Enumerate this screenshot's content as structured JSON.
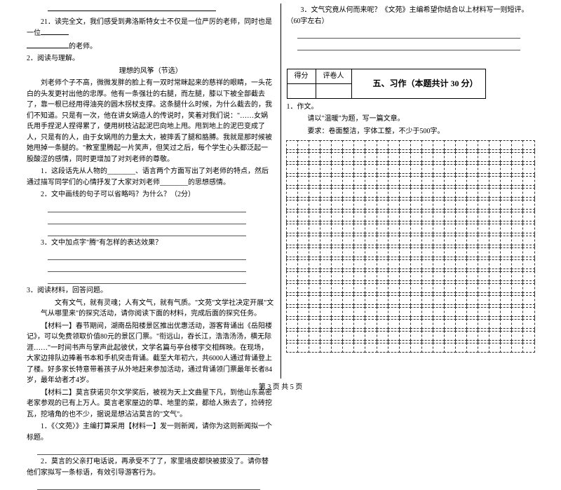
{
  "left": {
    "blank_intro": "",
    "q21": "21．读完全文，我们感受到弗洛斯特女士不仅是一位严厉的老师，同时也是一位",
    "q21_tail": "的老师。",
    "item2": "2．阅读与理解。",
    "passage_title": "理想的风筝（节选）",
    "passage": "刘老师个子不高，微微发胖的脸上有一双时常眯起来的慈祥的眼睛，一头花白的头发更衬出他的忠厚。他有一条强壮的右腿，而左腿，膝以下被全部截去了，靠一根已经用得油亮的圆木拐杖支撑。这条腿什么时候，为什么截去的，我们不知道。只是有一次，他在讲女娲造人的传说时，笑着对我们说：\"……女娲氏用手捏泥人捏得累了，便用树枝沾起泥巴向地上甩。甩到地上的泥巴变成了人，只是有的人，由于女娲甩的力量太大，被摔丢了腿和胳膊。我就是那时候被她甩掉一条腿的。\"教室里腾起一片笑声，但笑过之后，每个学生心头都泛起一股酸涩的感情，同时更增加了对刘老师的尊敬。",
    "q1": "1．这段话先从人物的________、语言两个方面写出了刘老师的特点，然后通过描写同学们的心情抒发了大家对刘老师________的思想感情。",
    "q2": "2．文中画线的句子可以省略吗？为什么？（2分）",
    "q3": "3．文中加点字\"腾\"有怎样的表达效果？",
    "item3": "3．阅读材料，回答问题。",
    "mat_intro": "文有文气，就有灵魂；人有文气，就有气质。\"文苑\"文学社决定开展\"文气从哪里来\"的探究活动，请你阅读下面的材料，完成后面的探究任务。",
    "mat1": "【材料一】春节期间，湖南岳阳楼景区推出优惠活动，游客背诵出《岳阳楼记》，可以免费领取价值80元的景区门票。\"衔远山，吞长江，浩浩汤汤，横无际涯……\"一时间书声与掌声此起彼伏，文学名篇与亭台楼宇交相辉映。在现场，大家边排队边捧着书本和手机突击背诵。截至大年初六，共6000人通过背诵登上了楼。好多家长特意带着孩子从外地赶来参加活动，通过背诵领门票最年长者84岁，最年幼者才4岁。",
    "mat2": "【材料二】莫言获诺贝尔文学奖后，被视为天上文曲星下凡，到他山东高密老家参观的已有上万人。莫言老家屋边的草、地里的菜，都给人揪去了，捡砖挖瓦，挖墙角的也不少，据说是想沾沾莫言的\"文气\"。",
    "mq1": "1．《〈文苑〉》主编打算采用【材料一】发一则新闻，请你为这则新闻拟一个标题。",
    "mq2": "2．莫言的父亲打电话说，再承受不了了，家里墙皮都快被拔没了。请你替他们家拟写一条标语，有效引导游客行为。"
  },
  "right": {
    "mq3": "3．文气究竟从何而来呢？《文苑》主编希望你结合以上材料写一则短评。（60字左右）",
    "score_label1": "得分",
    "score_label2": "评卷人",
    "section5": "五、习作（本题共计 30 分）",
    "comp1": "1．作文。",
    "comp_prompt": "请以\"温暖\"为题，写一篇文章。",
    "comp_req": "要求：卷面整洁，字体工整，不少于500字。"
  },
  "footer": "第 3 页 共 5 页",
  "style": {
    "grid_cols": 22,
    "grid_rows": 18,
    "font_size": 10,
    "line_color": "#000000",
    "dashed_color": "#333333"
  }
}
